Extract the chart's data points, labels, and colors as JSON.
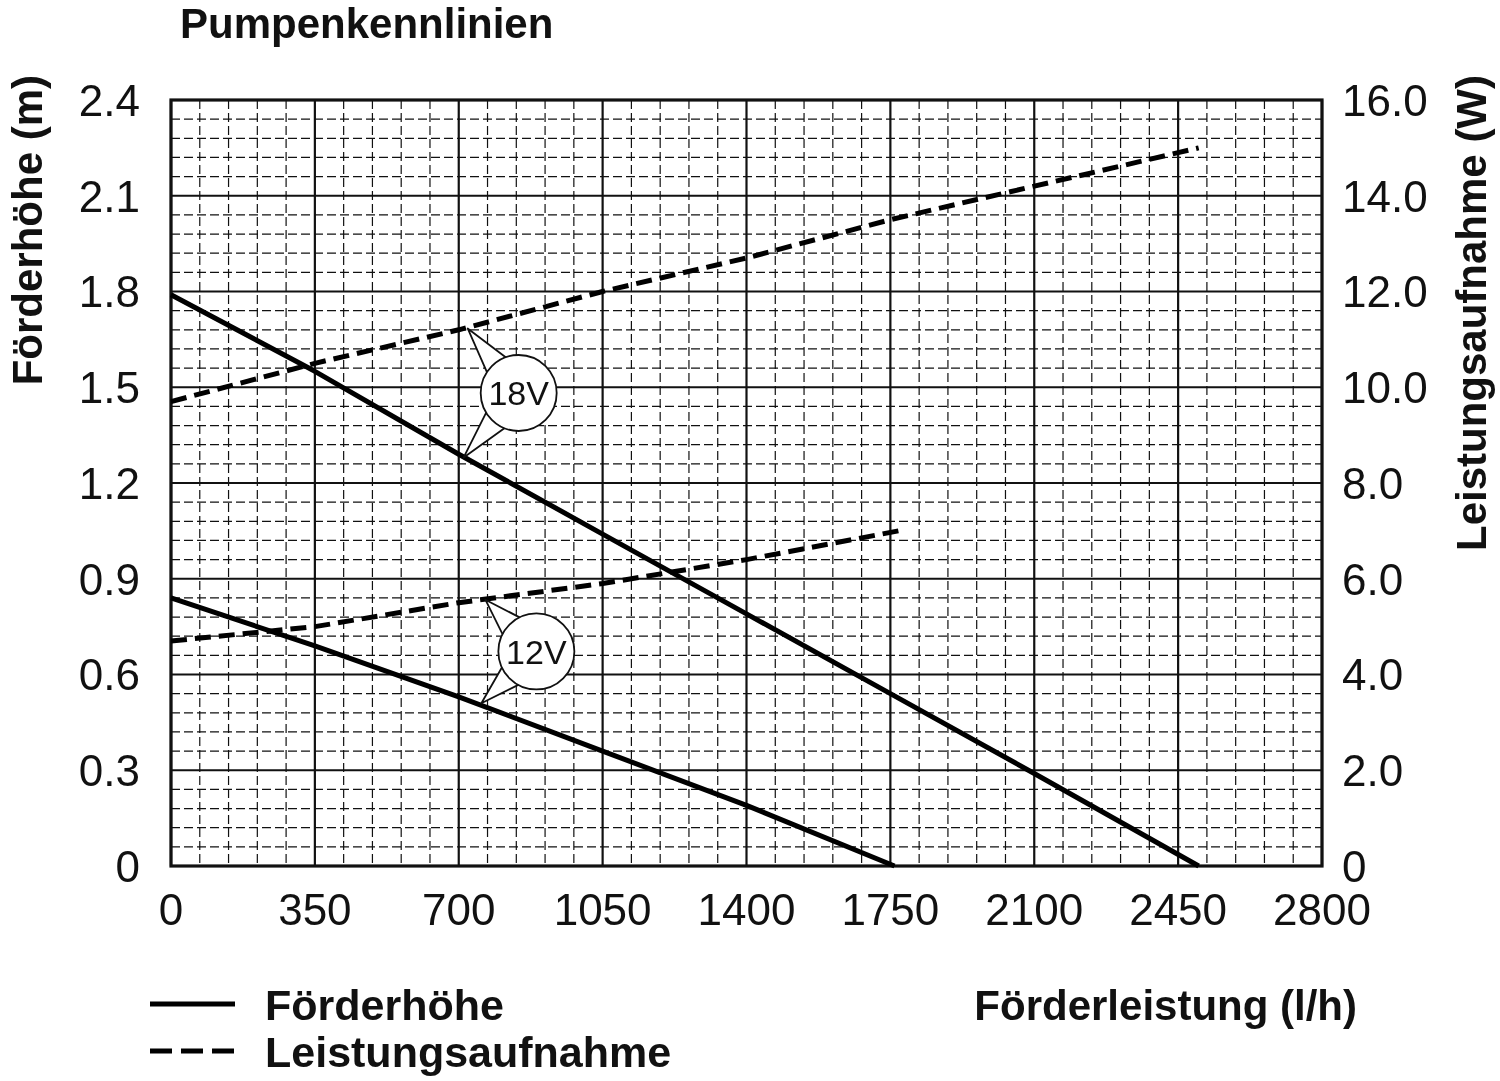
{
  "chart_data": {
    "type": "line",
    "title": "Pumpenkennlinien",
    "xlabel": "Förderleistung (l/h)",
    "ylabel": "Förderhöhe (m)",
    "y2label": "Leistungsaufnahme (W)",
    "xlim": [
      0,
      2800
    ],
    "xticks": [
      0,
      {
        "value": 70,
        "label": null
      },
      {
        "value": 140,
        "label": null
      },
      {
        "value": 210,
        "label": null
      },
      {
        "value": 280,
        "label": null
      },
      350,
      {
        "value": 420,
        "label": null
      },
      {
        "value": 490,
        "label": null
      },
      {
        "value": 560,
        "label": null
      },
      {
        "value": 630,
        "label": null
      },
      700,
      {
        "value": 770,
        "label": null
      },
      {
        "value": 840,
        "label": null
      },
      {
        "value": 910,
        "label": null
      },
      {
        "value": 980,
        "label": null
      },
      1050,
      {
        "value": 1120,
        "label": null
      },
      {
        "value": 1190,
        "label": null
      },
      {
        "value": 1260,
        "label": null
      },
      {
        "value": 1330,
        "label": null
      },
      1400,
      {
        "value": 1470,
        "label": null
      },
      {
        "value": 1540,
        "label": null
      },
      {
        "value": 1610,
        "label": null
      },
      {
        "value": 1680,
        "label": null
      },
      1750,
      {
        "value": 1820,
        "label": null
      },
      {
        "value": 1890,
        "label": null
      },
      {
        "value": 1960,
        "label": null
      },
      {
        "value": 2030,
        "label": null
      },
      2100,
      {
        "value": 2170,
        "label": null
      },
      {
        "value": 2240,
        "label": null
      },
      {
        "value": 2310,
        "label": null
      },
      {
        "value": 2380,
        "label": null
      },
      2450,
      {
        "value": 2520,
        "label": null
      },
      {
        "value": 2590,
        "label": null
      },
      {
        "value": 2660,
        "label": null
      },
      {
        "value": 2730,
        "label": null
      },
      2800
    ],
    "ylim": [
      0,
      2.4
    ],
    "yticks": [
      0,
      {
        "value": 0.06,
        "label": null
      },
      {
        "value": 0.12,
        "label": null
      },
      {
        "value": 0.18,
        "label": null
      },
      {
        "value": 0.24,
        "label": null
      },
      0.3,
      {
        "value": 0.36,
        "label": null
      },
      {
        "value": 0.42,
        "label": null
      },
      {
        "value": 0.48,
        "label": null
      },
      {
        "value": 0.54,
        "label": null
      },
      0.6,
      {
        "value": 0.66,
        "label": null
      },
      {
        "value": 0.72,
        "label": null
      },
      {
        "value": 0.78,
        "label": null
      },
      {
        "value": 0.84,
        "label": null
      },
      0.9,
      {
        "value": 0.96,
        "label": null
      },
      {
        "value": 1.02,
        "label": null
      },
      {
        "value": 1.08,
        "label": null
      },
      {
        "value": 1.14,
        "label": null
      },
      1.2,
      {
        "value": 1.26,
        "label": null
      },
      {
        "value": 1.32,
        "label": null
      },
      {
        "value": 1.38,
        "label": null
      },
      {
        "value": 1.44,
        "label": null
      },
      1.5,
      {
        "value": 1.56,
        "label": null
      },
      {
        "value": 1.62,
        "label": null
      },
      {
        "value": 1.68,
        "label": null
      },
      {
        "value": 1.74,
        "label": null
      },
      1.8,
      {
        "value": 1.86,
        "label": null
      },
      {
        "value": 1.92,
        "label": null
      },
      {
        "value": 1.98,
        "label": null
      },
      {
        "value": 2.04,
        "label": null
      },
      2.1,
      {
        "value": 2.16,
        "label": null
      },
      {
        "value": 2.22,
        "label": null
      },
      {
        "value": 2.28,
        "label": null
      },
      {
        "value": 2.34,
        "label": null
      },
      2.4
    ],
    "y2lim": [
      0,
      16
    ],
    "y2ticks": [
      0,
      {
        "value": 2,
        "label": "2.0"
      },
      {
        "value": 4,
        "label": "4.0"
      },
      {
        "value": 6,
        "label": "6.0"
      },
      {
        "value": 8,
        "label": "8.0"
      },
      {
        "value": 10,
        "label": "10.0"
      },
      {
        "value": 12,
        "label": "12.0"
      },
      {
        "value": 14,
        "label": "14.0"
      },
      {
        "value": 16,
        "label": "16.0"
      }
    ],
    "grid": true,
    "legend": "bottom left",
    "series": [
      {
        "name": "Förderhöhe",
        "color": "#000000",
        "line_style": "solid",
        "x": [
          0,
          350,
          700,
          1050,
          1400,
          1750,
          2100,
          2500
        ],
        "values": [
          1.79,
          1.55,
          1.29,
          1.04,
          0.79,
          0.54,
          0.29,
          0
        ]
      },
      {
        "color": "#000000",
        "line_style": "solid",
        "x": [
          0,
          350,
          700,
          1050,
          1400,
          1760
        ],
        "values": [
          0.84,
          0.69,
          0.53,
          0.36,
          0.19,
          0
        ]
      },
      {
        "name": "Leistungsaufnahme",
        "color": "#000000",
        "line_style": "dashed",
        "axis": "y2",
        "x": [
          0,
          350,
          700,
          1050,
          1400,
          1750,
          2100,
          2450,
          2500
        ],
        "values": [
          9.7,
          10.5,
          11.2,
          12.0,
          12.7,
          13.5,
          14.2,
          14.9,
          15.0
        ]
      },
      {
        "color": "#000000",
        "line_style": "dashed",
        "axis": "y2",
        "x": [
          0,
          350,
          700,
          1050,
          1400,
          1770
        ],
        "values": [
          4.7,
          5.0,
          5.5,
          5.9,
          6.4,
          7.0
        ]
      }
    ],
    "annotations": [
      {
        "text": "18V",
        "x": 712,
        "y": 1.28
      },
      {
        "text": "12V",
        "x": 755,
        "y": 0.51
      }
    ]
  }
}
